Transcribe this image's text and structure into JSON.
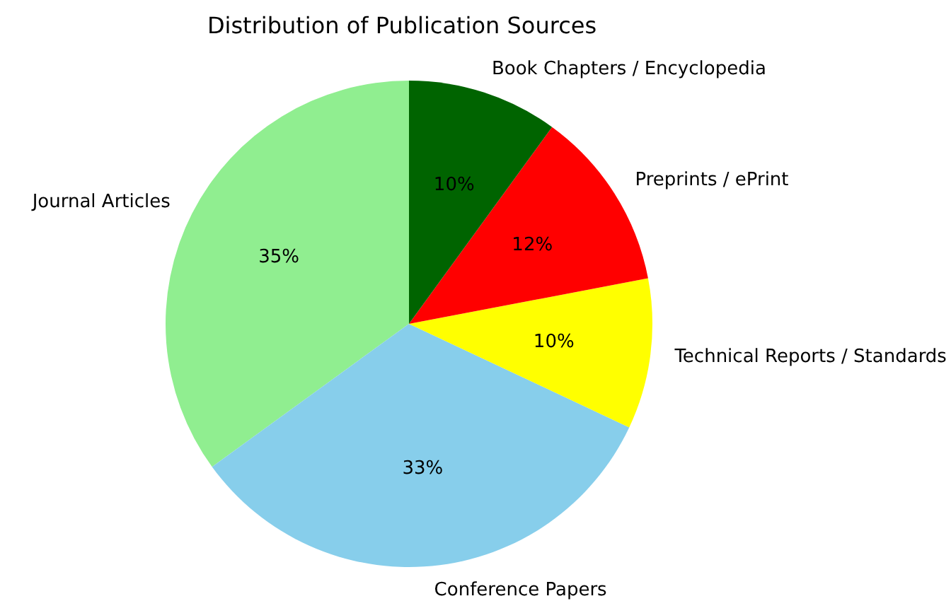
{
  "chart_data": {
    "type": "pie",
    "title": "Distribution of Publication Sources",
    "categories": [
      "Journal Articles",
      "Conference Papers",
      "Technical Reports / Standards",
      "Preprints / ePrint",
      "Book Chapters / Encyclopedia"
    ],
    "values": [
      35,
      33,
      10,
      12,
      10
    ],
    "colors": [
      "#90ee90",
      "#87ceeb",
      "#ffff00",
      "#ff0000",
      "#006400"
    ],
    "value_labels": [
      "35%",
      "33%",
      "10%",
      "12%",
      "10%"
    ]
  }
}
